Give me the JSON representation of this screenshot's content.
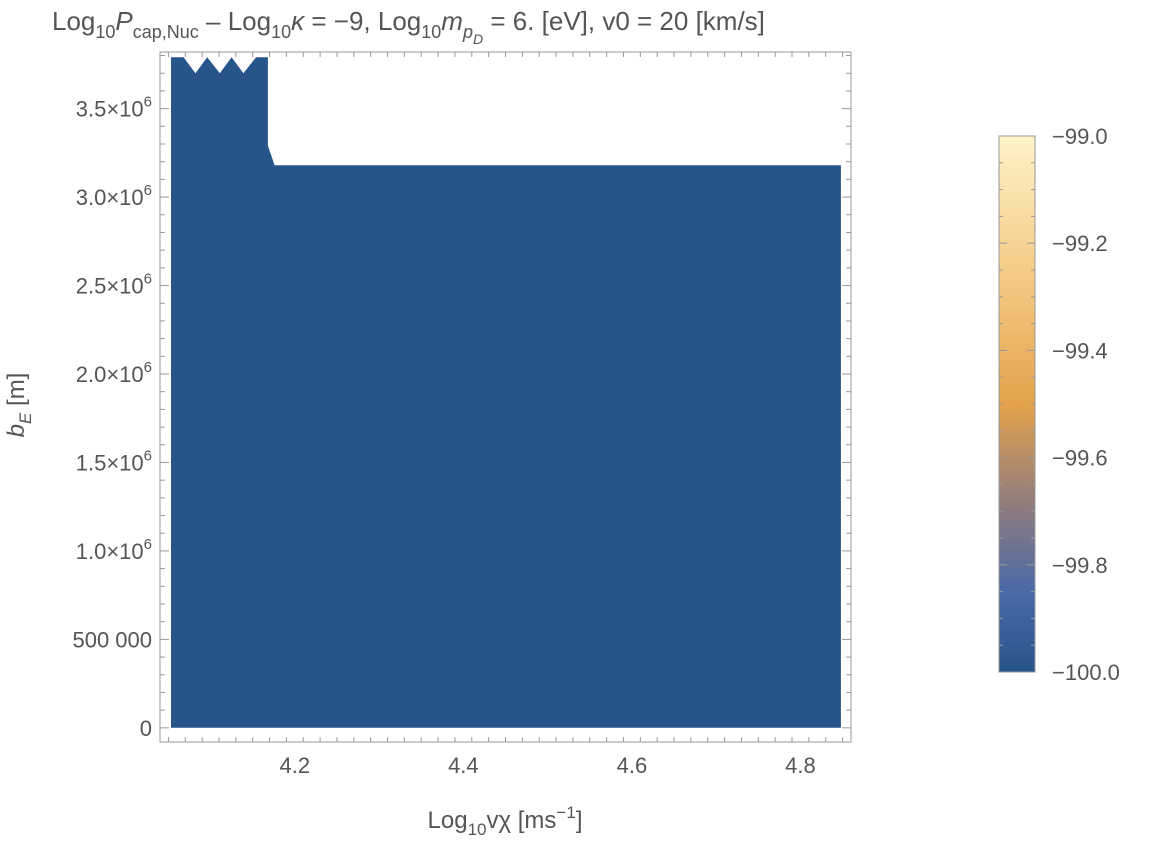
{
  "chart_data": {
    "type": "heatmap",
    "title": {
      "p1": "Log",
      "p2": "10",
      "p3": "P",
      "p4": "cap,Nuc",
      "p5": " – Log",
      "p6": "10",
      "p7": "κ",
      "p8": " = −9, Log",
      "p9": "10",
      "p10": "m",
      "p11": "p",
      "p12": "D",
      "p13": " = 6. [eV], v0 = 20 [km/s]"
    },
    "xlabel": {
      "p1": "Log",
      "p2": "10",
      "p3": "vχ [ms",
      "p4": "−1",
      "p5": "]"
    },
    "ylabel": {
      "p1": "b",
      "p2": "E",
      "p3": " [m]"
    },
    "xlim": [
      4.04,
      4.86
    ],
    "ylim": [
      -80000,
      3820000
    ],
    "x_ticks": [
      {
        "value": 4.2,
        "label": "4.2"
      },
      {
        "value": 4.4,
        "label": "4.4"
      },
      {
        "value": 4.6,
        "label": "4.6"
      },
      {
        "value": 4.8,
        "label": "4.8"
      }
    ],
    "y_ticks": [
      {
        "value": 0,
        "label": "0"
      },
      {
        "value": 500000,
        "label": "500 000"
      },
      {
        "value": 1000000,
        "mantissa": "1.0",
        "base": "×10",
        "exp": "6"
      },
      {
        "value": 1500000,
        "mantissa": "1.5",
        "base": "×10",
        "exp": "6"
      },
      {
        "value": 2000000,
        "mantissa": "2.0",
        "base": "×10",
        "exp": "6"
      },
      {
        "value": 2500000,
        "mantissa": "2.5",
        "base": "×10",
        "exp": "6"
      },
      {
        "value": 3000000,
        "mantissa": "3.0",
        "base": "×10",
        "exp": "6"
      },
      {
        "value": 3500000,
        "mantissa": "3.5",
        "base": "×10",
        "exp": "6"
      }
    ],
    "filled_region": {
      "value": -100.0,
      "color": "#27548a",
      "boundary": [
        [
          4.053,
          0
        ],
        [
          4.053,
          3790000
        ],
        [
          4.068,
          3790000
        ],
        [
          4.082,
          3700000
        ],
        [
          4.096,
          3790000
        ],
        [
          4.111,
          3700000
        ],
        [
          4.125,
          3790000
        ],
        [
          4.139,
          3700000
        ],
        [
          4.154,
          3790000
        ],
        [
          4.168,
          3790000
        ],
        [
          4.168,
          3290000
        ],
        [
          4.176,
          3180000
        ],
        [
          4.848,
          3180000
        ],
        [
          4.848,
          0
        ]
      ]
    },
    "colorbar": {
      "min": -100.0,
      "max": -99.0,
      "ticks": [
        {
          "value": -99.0,
          "label": "−99.0"
        },
        {
          "value": -99.2,
          "label": "−99.2"
        },
        {
          "value": -99.4,
          "label": "−99.4"
        },
        {
          "value": -99.6,
          "label": "−99.6"
        },
        {
          "value": -99.8,
          "label": "−99.8"
        },
        {
          "value": -100.0,
          "label": "−100.0"
        }
      ],
      "gradient": [
        {
          "value": -100.0,
          "color": "#27548a"
        },
        {
          "value": -99.85,
          "color": "#4a6aa8"
        },
        {
          "value": -99.7,
          "color": "#8a7a80"
        },
        {
          "value": -99.5,
          "color": "#e4a24c"
        },
        {
          "value": -99.3,
          "color": "#f2c47c"
        },
        {
          "value": -99.0,
          "color": "#fff3c8"
        }
      ]
    },
    "grid": false,
    "frame_color": "#999999"
  }
}
